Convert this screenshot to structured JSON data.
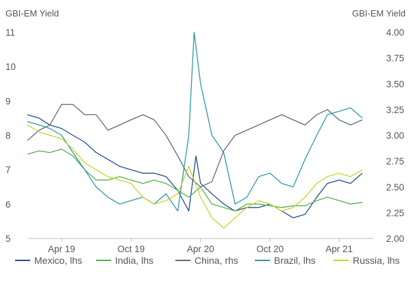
{
  "chart_data": {
    "type": "line",
    "ylabel_left": "GBI-EM Yield",
    "ylabel_right": "GBI-EM Yield",
    "ylim_left": [
      5,
      11
    ],
    "ylim_right": [
      2.0,
      4.0
    ],
    "yticks_left": [
      "5",
      "6",
      "7",
      "8",
      "9",
      "10",
      "11"
    ],
    "yticks_right": [
      "2.00",
      "2.25",
      "2.50",
      "2.75",
      "3.00",
      "3.25",
      "3.50",
      "3.75",
      "4.00"
    ],
    "x_range": [
      "2019-01-01",
      "2021-06-30"
    ],
    "x_ticks": [
      {
        "date": "2019-04-01",
        "label": "Apr 19"
      },
      {
        "date": "2019-10-01",
        "label": "Oct 19"
      },
      {
        "date": "2020-04-01",
        "label": "Apr 20"
      },
      {
        "date": "2020-10-01",
        "label": "Oct 20"
      },
      {
        "date": "2021-04-01",
        "label": "Apr 21"
      }
    ],
    "grid": false,
    "legend_position": "bottom",
    "series": [
      {
        "name": "Mexico, lhs",
        "axis": "left",
        "color": "#1f4e8c",
        "points": [
          [
            "2019-01-01",
            8.6
          ],
          [
            "2019-02-01",
            8.5
          ],
          [
            "2019-03-01",
            8.3
          ],
          [
            "2019-04-01",
            8.2
          ],
          [
            "2019-05-01",
            8.0
          ],
          [
            "2019-06-01",
            7.8
          ],
          [
            "2019-07-01",
            7.5
          ],
          [
            "2019-08-01",
            7.3
          ],
          [
            "2019-09-01",
            7.1
          ],
          [
            "2019-10-01",
            7.0
          ],
          [
            "2019-11-01",
            6.9
          ],
          [
            "2019-12-01",
            6.9
          ],
          [
            "2020-01-01",
            6.8
          ],
          [
            "2020-02-01",
            6.4
          ],
          [
            "2020-03-01",
            5.8
          ],
          [
            "2020-03-20",
            7.4
          ],
          [
            "2020-04-01",
            6.6
          ],
          [
            "2020-05-01",
            6.3
          ],
          [
            "2020-06-01",
            6.0
          ],
          [
            "2020-07-01",
            5.8
          ],
          [
            "2020-08-01",
            5.9
          ],
          [
            "2020-09-01",
            5.9
          ],
          [
            "2020-10-01",
            6.0
          ],
          [
            "2020-11-01",
            5.8
          ],
          [
            "2020-12-01",
            5.6
          ],
          [
            "2021-01-01",
            5.7
          ],
          [
            "2021-02-01",
            6.2
          ],
          [
            "2021-03-01",
            6.6
          ],
          [
            "2021-04-01",
            6.7
          ],
          [
            "2021-05-01",
            6.6
          ],
          [
            "2021-06-01",
            6.9
          ]
        ]
      },
      {
        "name": "India, lhs",
        "axis": "left",
        "color": "#56b048",
        "points": [
          [
            "2019-01-01",
            7.45
          ],
          [
            "2019-02-01",
            7.55
          ],
          [
            "2019-03-01",
            7.5
          ],
          [
            "2019-04-01",
            7.6
          ],
          [
            "2019-05-01",
            7.4
          ],
          [
            "2019-06-01",
            7.0
          ],
          [
            "2019-07-01",
            6.7
          ],
          [
            "2019-08-01",
            6.7
          ],
          [
            "2019-09-01",
            6.8
          ],
          [
            "2019-10-01",
            6.7
          ],
          [
            "2019-11-01",
            6.6
          ],
          [
            "2019-12-01",
            6.7
          ],
          [
            "2020-01-01",
            6.6
          ],
          [
            "2020-02-01",
            6.4
          ],
          [
            "2020-03-01",
            6.2
          ],
          [
            "2020-04-01",
            6.5
          ],
          [
            "2020-05-01",
            6.0
          ],
          [
            "2020-06-01",
            5.9
          ],
          [
            "2020-07-01",
            5.8
          ],
          [
            "2020-08-01",
            6.0
          ],
          [
            "2020-09-01",
            6.0
          ],
          [
            "2020-10-01",
            5.95
          ],
          [
            "2020-11-01",
            5.9
          ],
          [
            "2020-12-01",
            5.95
          ],
          [
            "2021-01-01",
            5.95
          ],
          [
            "2021-02-01",
            6.1
          ],
          [
            "2021-03-01",
            6.2
          ],
          [
            "2021-04-01",
            6.1
          ],
          [
            "2021-05-01",
            6.0
          ],
          [
            "2021-06-01",
            6.05
          ]
        ]
      },
      {
        "name": "China, rhs",
        "axis": "right",
        "color": "#5f6b78",
        "points": [
          [
            "2019-01-01",
            2.95
          ],
          [
            "2019-02-01",
            3.05
          ],
          [
            "2019-03-01",
            3.1
          ],
          [
            "2019-04-01",
            3.3
          ],
          [
            "2019-05-01",
            3.3
          ],
          [
            "2019-06-01",
            3.2
          ],
          [
            "2019-07-01",
            3.2
          ],
          [
            "2019-08-01",
            3.05
          ],
          [
            "2019-09-01",
            3.1
          ],
          [
            "2019-10-01",
            3.15
          ],
          [
            "2019-11-01",
            3.2
          ],
          [
            "2019-12-01",
            3.15
          ],
          [
            "2020-01-01",
            3.0
          ],
          [
            "2020-02-01",
            2.8
          ],
          [
            "2020-03-01",
            2.6
          ],
          [
            "2020-04-01",
            2.5
          ],
          [
            "2020-05-01",
            2.55
          ],
          [
            "2020-06-01",
            2.85
          ],
          [
            "2020-07-01",
            3.0
          ],
          [
            "2020-08-01",
            3.05
          ],
          [
            "2020-09-01",
            3.1
          ],
          [
            "2020-10-01",
            3.15
          ],
          [
            "2020-11-01",
            3.2
          ],
          [
            "2020-12-01",
            3.15
          ],
          [
            "2021-01-01",
            3.1
          ],
          [
            "2021-02-01",
            3.2
          ],
          [
            "2021-03-01",
            3.25
          ],
          [
            "2021-04-01",
            3.15
          ],
          [
            "2021-05-01",
            3.1
          ],
          [
            "2021-06-01",
            3.15
          ]
        ]
      },
      {
        "name": "Brazil, lhs",
        "axis": "left",
        "color": "#2c98a8",
        "points": [
          [
            "2019-01-01",
            8.4
          ],
          [
            "2019-02-01",
            8.3
          ],
          [
            "2019-03-01",
            8.2
          ],
          [
            "2019-04-01",
            8.0
          ],
          [
            "2019-05-01",
            7.5
          ],
          [
            "2019-06-01",
            7.0
          ],
          [
            "2019-07-01",
            6.5
          ],
          [
            "2019-08-01",
            6.2
          ],
          [
            "2019-09-01",
            6.0
          ],
          [
            "2019-10-01",
            6.1
          ],
          [
            "2019-11-01",
            6.2
          ],
          [
            "2019-12-01",
            6.0
          ],
          [
            "2020-01-01",
            6.3
          ],
          [
            "2020-02-01",
            5.8
          ],
          [
            "2020-03-01",
            8.0
          ],
          [
            "2020-03-15",
            11.0
          ],
          [
            "2020-04-01",
            9.5
          ],
          [
            "2020-05-01",
            8.0
          ],
          [
            "2020-06-01",
            7.5
          ],
          [
            "2020-07-01",
            6.0
          ],
          [
            "2020-08-01",
            6.2
          ],
          [
            "2020-09-01",
            6.8
          ],
          [
            "2020-10-01",
            6.9
          ],
          [
            "2020-11-01",
            6.6
          ],
          [
            "2020-12-01",
            6.5
          ],
          [
            "2021-01-01",
            7.3
          ],
          [
            "2021-02-01",
            8.0
          ],
          [
            "2021-03-01",
            8.6
          ],
          [
            "2021-04-01",
            8.7
          ],
          [
            "2021-05-01",
            8.8
          ],
          [
            "2021-06-01",
            8.5
          ]
        ]
      },
      {
        "name": "Russia, lhs",
        "axis": "left",
        "color": "#c6d42a",
        "points": [
          [
            "2019-01-01",
            8.3
          ],
          [
            "2019-02-01",
            8.1
          ],
          [
            "2019-03-01",
            8.0
          ],
          [
            "2019-04-01",
            7.9
          ],
          [
            "2019-05-01",
            7.6
          ],
          [
            "2019-06-01",
            7.2
          ],
          [
            "2019-07-01",
            7.0
          ],
          [
            "2019-08-01",
            6.8
          ],
          [
            "2019-09-01",
            6.7
          ],
          [
            "2019-10-01",
            6.6
          ],
          [
            "2019-11-01",
            6.2
          ],
          [
            "2019-12-01",
            6.0
          ],
          [
            "2020-01-01",
            6.1
          ],
          [
            "2020-02-01",
            6.3
          ],
          [
            "2020-03-01",
            7.1
          ],
          [
            "2020-04-01",
            6.2
          ],
          [
            "2020-05-01",
            5.6
          ],
          [
            "2020-06-01",
            5.3
          ],
          [
            "2020-07-01",
            5.6
          ],
          [
            "2020-08-01",
            5.9
          ],
          [
            "2020-09-01",
            6.1
          ],
          [
            "2020-10-01",
            6.0
          ],
          [
            "2020-11-01",
            5.8
          ],
          [
            "2020-12-01",
            5.9
          ],
          [
            "2021-01-01",
            6.2
          ],
          [
            "2021-02-01",
            6.6
          ],
          [
            "2021-03-01",
            6.8
          ],
          [
            "2021-04-01",
            6.9
          ],
          [
            "2021-05-01",
            6.8
          ],
          [
            "2021-06-01",
            7.0
          ]
        ]
      }
    ]
  }
}
